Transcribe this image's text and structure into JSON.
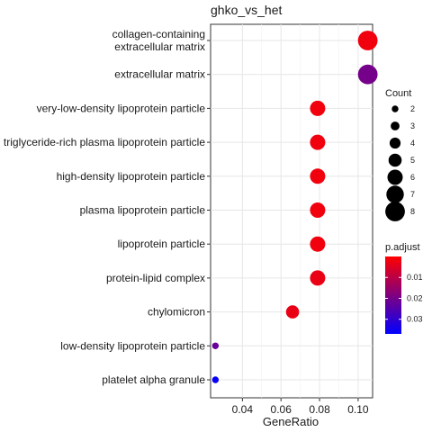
{
  "chart_data": {
    "type": "scatter",
    "title": "ghko_vs_het",
    "xlabel": "GeneRatio",
    "ylabel": "",
    "xlim": [
      0.0235,
      0.1075
    ],
    "x_ticks": [
      0.04,
      0.06,
      0.08,
      0.1
    ],
    "x_tick_labels": [
      "0.04",
      "0.06",
      "0.08",
      "0.10"
    ],
    "grid": true,
    "categories": [
      "collagen-containing\nextracellular matrix",
      "extracellular matrix",
      "very-low-density lipoprotein particle",
      "triglyceride-rich plasma lipoprotein particle",
      "high-density lipoprotein particle",
      "plasma lipoprotein particle",
      "lipoprotein particle",
      "protein-lipid complex",
      "chylomicron",
      "low-density lipoprotein particle",
      "platelet alpha granule"
    ],
    "points": [
      {
        "term": "collagen-containing\nextracellular matrix",
        "gene_ratio": 0.105,
        "count": 8,
        "p_adjust": 0.002
      },
      {
        "term": "extracellular matrix",
        "gene_ratio": 0.105,
        "count": 8,
        "p_adjust": 0.02
      },
      {
        "term": "very-low-density lipoprotein particle",
        "gene_ratio": 0.079,
        "count": 6,
        "p_adjust": 0.002
      },
      {
        "term": "triglyceride-rich plasma lipoprotein particle",
        "gene_ratio": 0.079,
        "count": 6,
        "p_adjust": 0.002
      },
      {
        "term": "high-density lipoprotein particle",
        "gene_ratio": 0.079,
        "count": 6,
        "p_adjust": 0.002
      },
      {
        "term": "plasma lipoprotein particle",
        "gene_ratio": 0.079,
        "count": 6,
        "p_adjust": 0.002
      },
      {
        "term": "lipoprotein particle",
        "gene_ratio": 0.079,
        "count": 6,
        "p_adjust": 0.002
      },
      {
        "term": "protein-lipid complex",
        "gene_ratio": 0.079,
        "count": 6,
        "p_adjust": 0.003
      },
      {
        "term": "chylomicron",
        "gene_ratio": 0.066,
        "count": 5,
        "p_adjust": 0.003
      },
      {
        "term": "low-density lipoprotein particle",
        "gene_ratio": 0.026,
        "count": 2,
        "p_adjust": 0.022
      },
      {
        "term": "platelet alpha granule",
        "gene_ratio": 0.026,
        "count": 2,
        "p_adjust": 0.036
      }
    ],
    "size_legend": {
      "title": "Count",
      "values": [
        2,
        3,
        4,
        5,
        6,
        7,
        8
      ]
    },
    "color_legend": {
      "title": "p.adjust",
      "min": 0.0,
      "max": 0.037,
      "ticks": [
        0.01,
        0.02,
        0.03
      ],
      "tick_labels": [
        "0.01",
        "0.02",
        "0.03"
      ],
      "low_color": "#ff0000",
      "high_color": "#0000ff"
    }
  }
}
